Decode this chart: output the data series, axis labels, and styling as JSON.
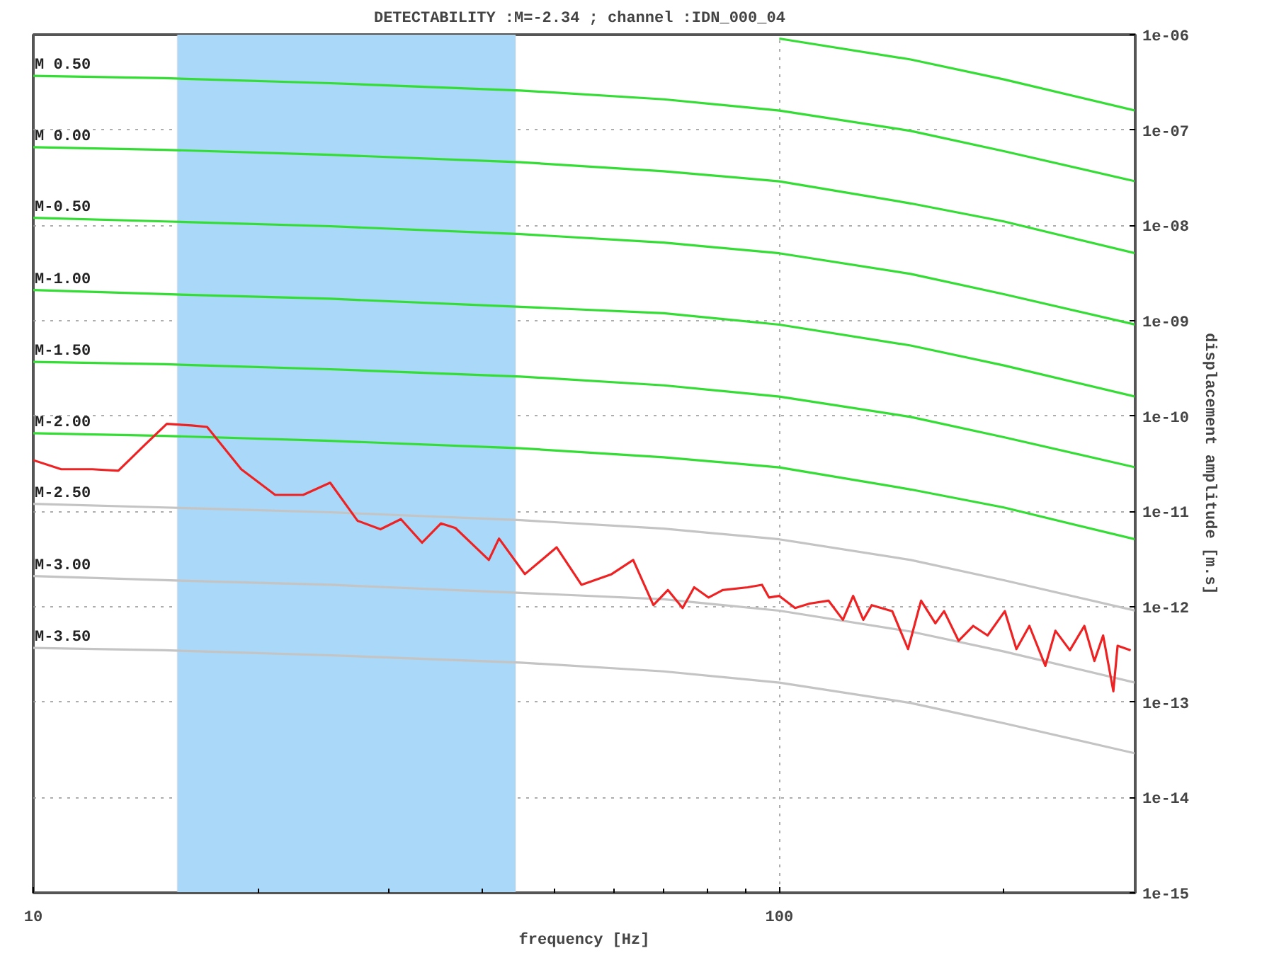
{
  "chart_data": {
    "type": "line",
    "title": "DETECTABILITY :M=-2.34  ; channel :IDN_000_04",
    "xlabel": "frequency [Hz]",
    "ylabel": "displacement amplitude [m.s]",
    "log": "xy",
    "grid": true,
    "marker": "none",
    "line_style": "solid",
    "xlim": [
      10,
      300
    ],
    "xticks": [
      10,
      100
    ],
    "ylim": [
      1e-15,
      1e-06
    ],
    "yticks": [
      {
        "value": 1e-06,
        "label": "1e-06"
      },
      {
        "value": 1e-07,
        "label": "1e-07"
      },
      {
        "value": 1e-08,
        "label": "1e-08"
      },
      {
        "value": 1e-09,
        "label": "1e-09"
      },
      {
        "value": 1e-10,
        "label": "1e-10"
      },
      {
        "value": 1e-11,
        "label": "1e-11"
      },
      {
        "value": 1e-12,
        "label": "1e-12"
      },
      {
        "value": 1e-13,
        "label": "1e-13"
      },
      {
        "value": 1e-14,
        "label": "1e-14"
      },
      {
        "value": 1e-15,
        "label": "1e-15"
      }
    ],
    "bands": [
      {
        "axis": "x",
        "from": 15.6,
        "to": 44.3,
        "color": "#aad8f8"
      }
    ],
    "x": [
      10,
      15,
      25,
      45,
      70,
      100,
      150,
      200,
      300
    ],
    "series": [
      {
        "color": "#33dd33",
        "x": [
          100,
          150,
          200,
          300
        ],
        "values": [
          9.1e-07,
          5.5e-07,
          3.4e-07,
          1.6e-07
        ]
      },
      {
        "name": "M 0.50",
        "color": "#33dd33",
        "values": [
          3.7e-07,
          3.5e-07,
          3.1e-07,
          2.6e-07,
          2.1e-07,
          1.6e-07,
          9.8e-08,
          6e-08,
          2.9e-08
        ]
      },
      {
        "name": "M 0.00",
        "color": "#33dd33",
        "values": [
          6.6e-08,
          6.2e-08,
          5.5e-08,
          4.6e-08,
          3.7e-08,
          2.9e-08,
          1.7e-08,
          1.1e-08,
          5.1e-09
        ]
      },
      {
        "name": "M-0.50",
        "color": "#33dd33",
        "values": [
          1.2e-08,
          1.1e-08,
          9.8e-09,
          8.1e-09,
          6.6e-09,
          5.1e-09,
          3.1e-09,
          1.9e-09,
          9.1e-10
        ]
      },
      {
        "name": "M-1.00",
        "color": "#33dd33",
        "values": [
          2.1e-09,
          1.9e-09,
          1.7e-09,
          1.4e-09,
          1.2e-09,
          9.1e-10,
          5.5e-10,
          3.4e-10,
          1.6e-10
        ]
      },
      {
        "name": "M-1.50",
        "color": "#33dd33",
        "values": [
          3.7e-10,
          3.5e-10,
          3.1e-10,
          2.6e-10,
          2.1e-10,
          1.6e-10,
          9.8e-11,
          6e-11,
          2.9e-11
        ]
      },
      {
        "name": "M-2.00",
        "color": "#33dd33",
        "values": [
          6.6e-11,
          6.2e-11,
          5.5e-11,
          4.6e-11,
          3.7e-11,
          2.9e-11,
          1.7e-11,
          1.1e-11,
          5.1e-12
        ]
      },
      {
        "name": "M-2.50",
        "color": "#c4c4c4",
        "values": [
          1.2e-11,
          1.1e-11,
          9.8e-12,
          8.1e-12,
          6.6e-12,
          5.1e-12,
          3.1e-12,
          1.9e-12,
          9.1e-13
        ]
      },
      {
        "name": "M-3.00",
        "color": "#c4c4c4",
        "values": [
          2.1e-12,
          1.9e-12,
          1.7e-12,
          1.4e-12,
          1.2e-12,
          9.1e-13,
          5.5e-13,
          3.4e-13,
          1.6e-13
        ]
      },
      {
        "name": "M-3.50",
        "color": "#c4c4c4",
        "values": [
          3.7e-13,
          3.5e-13,
          3.1e-13,
          2.6e-13,
          2.1e-13,
          1.6e-13,
          9.8e-14,
          6e-14,
          2.9e-14
        ]
      },
      {
        "color": "#ee2222",
        "x": [
          10.0,
          10.9,
          12.0,
          13.0,
          14.1,
          15.1,
          16.3,
          17.1,
          19.0,
          21.1,
          23.0,
          25.0,
          27.2,
          29.2,
          31.1,
          33.2,
          35.2,
          36.8,
          40.8,
          42.1,
          45.6,
          50.3,
          54.3,
          59.6,
          63.7,
          67.8,
          70.9,
          74.2,
          76.9,
          80.4,
          84.0,
          90.7,
          94.8,
          96.9,
          100,
          105,
          109.8,
          116.4,
          121.7,
          125.6,
          129.6,
          133.0,
          141.7,
          148.8,
          154.9,
          161.9,
          166.3,
          173.9,
          181.9,
          190.2,
          200.6,
          207.9,
          216.4,
          227.3,
          234.5,
          245.2,
          256.4,
          264.5,
          271.7,
          280.4,
          284.1,
          295.8
        ],
        "values": [
          3.45e-11,
          2.77e-11,
          2.77e-11,
          2.67e-11,
          4.97e-11,
          8.28e-11,
          7.98e-11,
          7.69e-11,
          2.77e-11,
          1.49e-11,
          1.49e-11,
          2e-11,
          8e-12,
          6.5e-12,
          8.3e-12,
          4.7e-12,
          7.5e-12,
          6.7e-12,
          3.1e-12,
          5.2e-12,
          2.2e-12,
          4.2e-12,
          1.7e-12,
          2.2e-12,
          3.1e-12,
          1.04e-12,
          1.5e-12,
          9.7e-13,
          1.6e-12,
          1.25e-12,
          1.5e-12,
          1.6e-12,
          1.7e-12,
          1.25e-12,
          1.3e-12,
          9.7e-13,
          1.08e-12,
          1.16e-12,
          7.3e-13,
          1.3e-12,
          7.3e-13,
          1.04e-12,
          9e-13,
          3.6e-13,
          1.16e-12,
          6.7e-13,
          9e-13,
          4.4e-13,
          6.3e-13,
          5e-13,
          9e-13,
          3.6e-13,
          6.3e-13,
          2.4e-13,
          5.6e-13,
          3.5e-13,
          6.3e-13,
          2.7e-13,
          5e-13,
          1.3e-13,
          3.9e-13,
          3.5e-13
        ]
      }
    ]
  }
}
